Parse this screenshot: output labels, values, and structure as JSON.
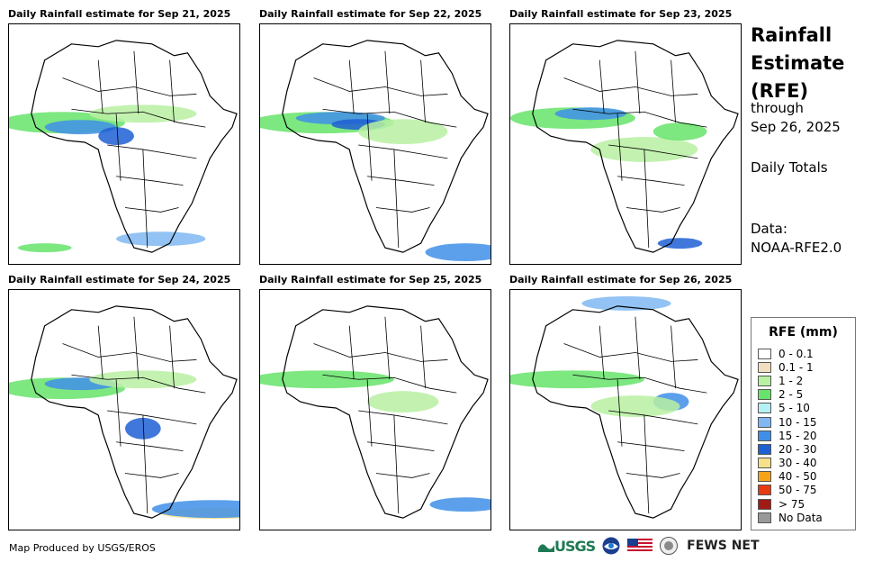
{
  "maps": [
    {
      "title": "Daily Rainfall estimate for Sep 21, 2025"
    },
    {
      "title": "Daily Rainfall estimate for Sep 22, 2025"
    },
    {
      "title": "Daily Rainfall estimate for Sep 23, 2025"
    },
    {
      "title": "Daily Rainfall estimate for Sep 24, 2025"
    },
    {
      "title": "Daily Rainfall estimate for Sep 25, 2025"
    },
    {
      "title": "Daily Rainfall estimate for Sep 26, 2025"
    }
  ],
  "side": {
    "title_line1": "Rainfall",
    "title_line2": "Estimate",
    "title_line3": "(RFE)",
    "through": "through",
    "date": "Sep 26, 2025",
    "totals": "Daily Totals",
    "data_label": "Data:",
    "data_source": "NOAA-RFE2.0"
  },
  "legend": {
    "title": "RFE (mm)",
    "items": [
      {
        "label": "0 - 0.1",
        "color": "#ffffff"
      },
      {
        "label": "0.1 - 1",
        "color": "#f2dfc0"
      },
      {
        "label": "1 - 2",
        "color": "#b9f0a2"
      },
      {
        "label": "2 - 5",
        "color": "#66e36a"
      },
      {
        "label": "5 - 10",
        "color": "#b4f0f7"
      },
      {
        "label": "10 - 15",
        "color": "#7fb8f2"
      },
      {
        "label": "15 - 20",
        "color": "#3f8fe8"
      },
      {
        "label": "20 - 30",
        "color": "#1f5fd4"
      },
      {
        "label": "30 - 40",
        "color": "#f6e08a"
      },
      {
        "label": "40 - 50",
        "color": "#f5a31a"
      },
      {
        "label": "50 - 75",
        "color": "#e83a10"
      },
      {
        "label": "> 75",
        "color": "#a11a14"
      },
      {
        "label": "No Data",
        "color": "#999999"
      }
    ]
  },
  "footer": {
    "credit": "Map Produced by USGS/EROS",
    "usgs": "USGS",
    "fews": "FEWS NET"
  }
}
